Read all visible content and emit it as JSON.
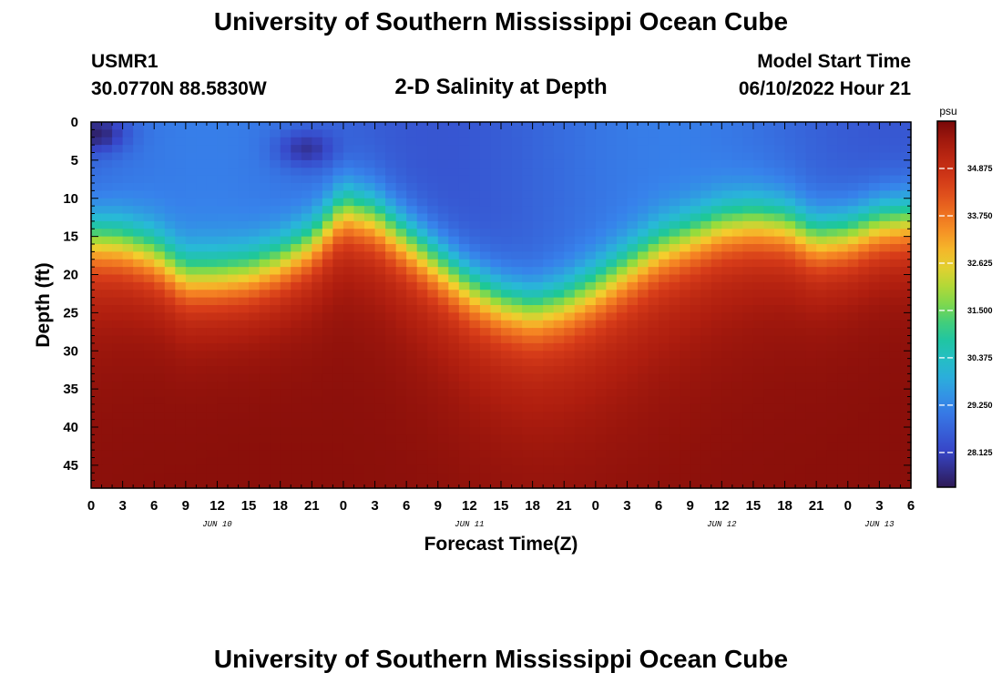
{
  "header": {
    "title": "University of Southern Mississippi Ocean Cube",
    "station": "USMR1",
    "coords": "30.0770N  88.5830W",
    "subtitle": "2-D Salinity at Depth",
    "start_label": "Model Start Time",
    "start_value": "06/10/2022 Hour 21"
  },
  "footer": {
    "title": "University of Southern Mississippi Ocean Cube"
  },
  "chart_data": {
    "type": "heatmap",
    "title": "2-D Salinity at Depth",
    "xlabel": "Forecast Time(Z)",
    "ylabel": "Depth (ft)",
    "x_range_hours": [
      0,
      78
    ],
    "x_tick_step_hours": 3,
    "x_tick_labels": [
      "0",
      "3",
      "6",
      "9",
      "12",
      "15",
      "18",
      "21",
      "0",
      "3",
      "6",
      "9",
      "12",
      "15",
      "18",
      "21",
      "0",
      "3",
      "6",
      "9",
      "12",
      "15",
      "18",
      "21",
      "0",
      "3",
      "6"
    ],
    "date_labels": [
      {
        "label": "JUN 10",
        "hour": 12
      },
      {
        "label": "JUN 11",
        "hour": 36
      },
      {
        "label": "JUN 12",
        "hour": 60
      },
      {
        "label": "JUN 13",
        "hour": 75
      }
    ],
    "y_range_ft": [
      0,
      48
    ],
    "y_tick_values": [
      0,
      5,
      10,
      15,
      20,
      25,
      30,
      35,
      40,
      45
    ],
    "colorbar": {
      "unit": "psu",
      "min": 27.3,
      "max": 36.0,
      "tick_values": [
        34.875,
        33.75,
        32.625,
        31.5,
        30.375,
        29.25,
        28.125
      ],
      "tick_labels": [
        "34.875",
        "33.750",
        "32.625",
        "31.500",
        "30.375",
        "29.250",
        "28.125"
      ]
    },
    "halocline_depth_profile": {
      "hour": [
        0,
        3,
        6,
        9,
        12,
        15,
        18,
        21,
        24,
        27,
        30,
        33,
        36,
        39,
        42,
        45,
        48,
        51,
        54,
        57,
        60,
        63,
        66,
        69,
        72,
        75,
        78
      ],
      "depth_ft": [
        15,
        15.5,
        17,
        20,
        20,
        19.5,
        18,
        15.5,
        11,
        12,
        15,
        18,
        21,
        23,
        24,
        23,
        21,
        18.5,
        16,
        14.5,
        13,
        12.5,
        13,
        15,
        14.5,
        13,
        12.5
      ]
    },
    "surface_salinity_psu": 29.0,
    "fresh_patches": [
      {
        "hour": 0.5,
        "depth_ft": 1.5,
        "salinity_psu": 27.5
      },
      {
        "hour": 20.5,
        "depth_ft": 3.5,
        "salinity_psu": 27.8
      }
    ],
    "deep_salinity_psu": 35.8
  }
}
